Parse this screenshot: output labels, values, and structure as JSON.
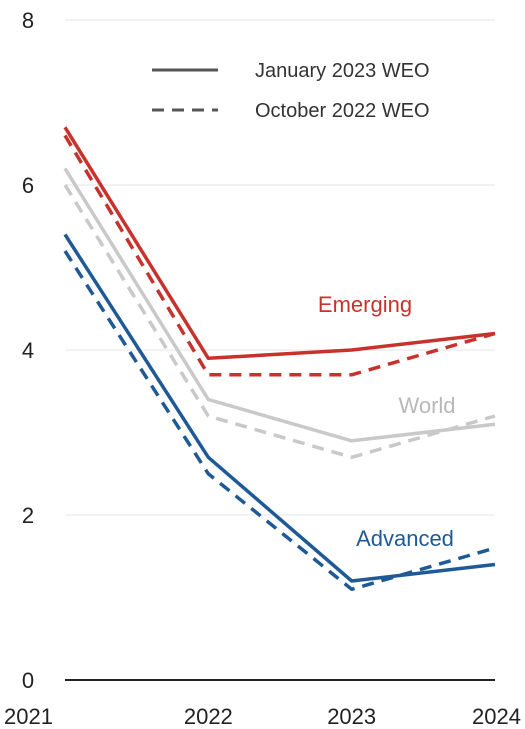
{
  "chart_data": {
    "type": "line",
    "title": "",
    "xlabel": "",
    "ylabel": "",
    "x": [
      "2021",
      "2022",
      "2023",
      "2024"
    ],
    "ylim": [
      0,
      8
    ],
    "yticks": [
      "0",
      "2",
      "4",
      "6",
      "8"
    ],
    "grid": true,
    "legend": {
      "placement": "top-right",
      "entries": [
        {
          "label": "January 2023 WEO",
          "style": "solid"
        },
        {
          "label": "October 2022 WEO",
          "style": "dashed"
        }
      ]
    },
    "series": [
      {
        "name": "Emerging",
        "color": "#c8322d",
        "style": "solid",
        "values": [
          6.7,
          3.9,
          4.0,
          4.2
        ]
      },
      {
        "name": "Emerging",
        "color": "#c8322d",
        "style": "dashed",
        "values": [
          6.6,
          3.7,
          3.7,
          4.2
        ]
      },
      {
        "name": "World",
        "color": "#c9c9c9",
        "style": "solid",
        "values": [
          6.2,
          3.4,
          2.9,
          3.1
        ]
      },
      {
        "name": "World",
        "color": "#c9c9c9",
        "style": "dashed",
        "values": [
          6.0,
          3.2,
          2.7,
          3.2
        ]
      },
      {
        "name": "Advanced",
        "color": "#1f5a96",
        "style": "solid",
        "values": [
          5.4,
          2.7,
          1.2,
          1.4
        ]
      },
      {
        "name": "Advanced",
        "color": "#1f5a96",
        "style": "dashed",
        "values": [
          5.2,
          2.5,
          1.1,
          1.6
        ]
      }
    ],
    "annotations": [
      {
        "text": "Emerging",
        "color": "#c8322d"
      },
      {
        "text": "World",
        "color": "#b8b8b8"
      },
      {
        "text": "Advanced",
        "color": "#1f5a96"
      }
    ]
  }
}
